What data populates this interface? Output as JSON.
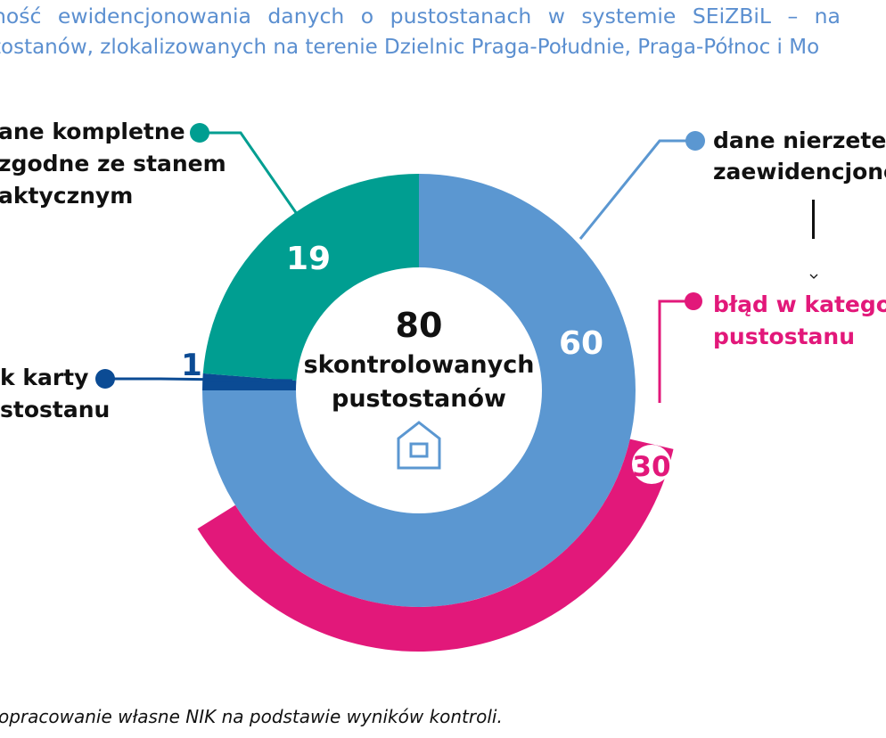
{
  "title": {
    "line1": "ność ewidencjonowania danych o pustostanach w systemie SEiZBiL – na",
    "line2": "tostanów, zlokalizowanych na terenie Dzielnic Praga-Południe, Praga-Północ i Mo"
  },
  "center": {
    "number": "80",
    "line1": "skontrolowanych",
    "line2": "pustostanów",
    "icon": "house-icon"
  },
  "labels": {
    "complete": [
      "ane kompletne",
      "zgodne ze stanem",
      "aktycznym"
    ],
    "unreliable": [
      "dane nierzeteln",
      "zaewidencjono"
    ],
    "category_error": [
      "błąd w kategor",
      "pustostanu"
    ],
    "missing_card": [
      "k karty",
      "stostanu"
    ]
  },
  "source": "opracowanie własne NIK na podstawie wyników kontroli.",
  "colors": {
    "teal": "#009e91",
    "blue": "#5b97d1",
    "navy": "#0b4b94",
    "magenta": "#e2187a",
    "title": "#5b8fd0"
  },
  "chart_data": {
    "type": "pie",
    "total": 80,
    "segments": [
      {
        "label": "dane nierzeteln zaewidencjono",
        "value": 60,
        "value_label": "60",
        "color": "#5b97d1"
      },
      {
        "label": "k karty stostanu",
        "value": 1,
        "value_label": "1",
        "color": "#0b4b94"
      },
      {
        "label": "ane kompletne zgodne ze stanem aktycznym",
        "value": 19,
        "value_label": "19",
        "color": "#009e91"
      }
    ],
    "sub_segment": {
      "label": "błąd w kategor pustostanu",
      "value": 30,
      "value_label": "30",
      "color": "#e2187a",
      "part_of": "dane nierzeteln zaewidencjono"
    }
  }
}
